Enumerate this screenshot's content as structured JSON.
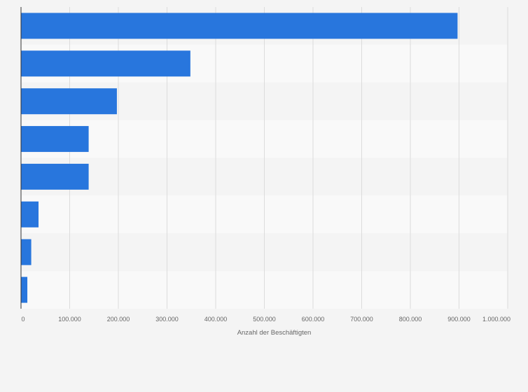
{
  "chart_data": {
    "type": "bar",
    "orientation": "horizontal",
    "title": "",
    "xlabel": "Anzahl der Beschäftigten",
    "ylabel": "",
    "categories": [
      "",
      "",
      "",
      "",
      "",
      "",
      "",
      ""
    ],
    "values": [
      897000,
      348000,
      197000,
      139000,
      139000,
      36000,
      21000,
      13000
    ],
    "xlim": [
      0,
      1000000
    ],
    "ticks": [
      0,
      100000,
      200000,
      300000,
      400000,
      500000,
      600000,
      700000,
      800000,
      900000,
      1000000
    ],
    "tick_labels": [
      "0",
      "100.000",
      "200.000",
      "300.000",
      "400.000",
      "500.000",
      "600.000",
      "700.000",
      "800.000",
      "900.000",
      "1.000.000"
    ],
    "grid": true,
    "legend": "none",
    "colors": {
      "bar": "#2876dd",
      "band_dark": "#f4f4f4",
      "band_light": "#f9f9f9",
      "grid": "#dcdcdc",
      "axis": "#333333"
    }
  }
}
